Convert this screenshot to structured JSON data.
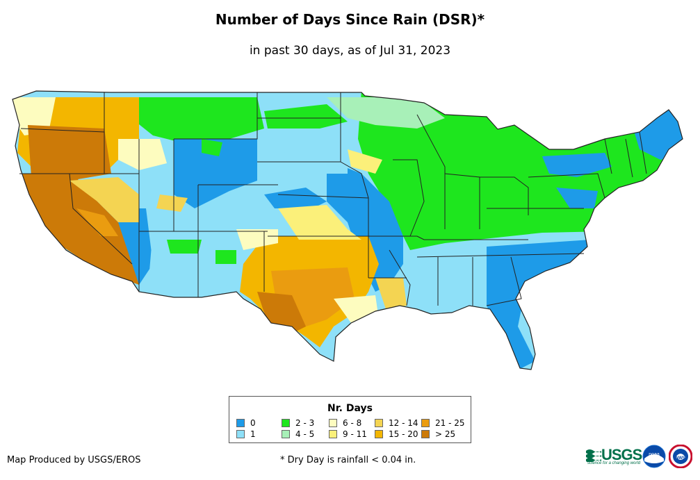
{
  "title": "Number of Days Since Rain (DSR)*",
  "subtitle": "in past 30 days, as of Jul 31, 2023",
  "legend": {
    "title": "Nr. Days",
    "items": [
      {
        "label": "0",
        "color": "#1e9be8"
      },
      {
        "label": "1",
        "color": "#8ee0f8"
      },
      {
        "label": "2 - 3",
        "color": "#1ee61e"
      },
      {
        "label": "4 - 5",
        "color": "#a8f0b8"
      },
      {
        "label": "6 - 8",
        "color": "#fdfcbf"
      },
      {
        "label": "9 - 11",
        "color": "#fbf07a"
      },
      {
        "label": "12 - 14",
        "color": "#f4d452"
      },
      {
        "label": "15 - 20",
        "color": "#f3b600"
      },
      {
        "label": "21 - 25",
        "color": "#ea9c10"
      },
      {
        "label": "> 25",
        "color": "#cc7a08"
      }
    ]
  },
  "credit": "Map Produced by USGS/EROS",
  "footnote": "* Dry Day is rainfall < 0.04 in.",
  "logos": {
    "usgs": "USGS",
    "usgs_tagline": "science for a changing world",
    "noaa": "noaa",
    "nws": "NWS"
  }
}
